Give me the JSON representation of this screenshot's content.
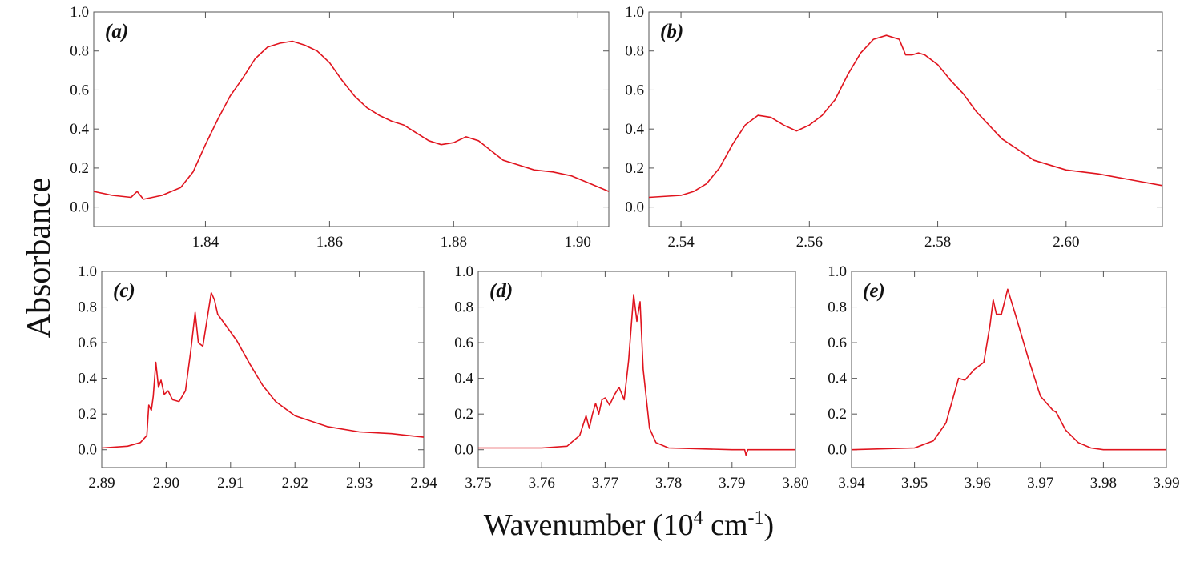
{
  "figure": {
    "ylabel": "Absorbance",
    "xlabel_main": "Wavenumber (10",
    "xlabel_exp": "4",
    "xlabel_unit": " cm",
    "xlabel_unit_exp": "-1",
    "xlabel_close": ")",
    "line_color": "#e0141e"
  },
  "chart_data": [
    {
      "type": "line",
      "panel": "a",
      "label": "(a)",
      "xlim": [
        1.822,
        1.905
      ],
      "ylim": [
        -0.1,
        1.0
      ],
      "xticks": [
        1.84,
        1.86,
        1.88,
        1.9
      ],
      "xtick_labels": [
        "1.84",
        "1.86",
        "1.88",
        "1.90"
      ],
      "yticks": [
        0.0,
        0.2,
        0.4,
        0.6,
        0.8,
        1.0
      ],
      "ytick_labels": [
        "0.0",
        "0.2",
        "0.4",
        "0.6",
        "0.8",
        "1.0"
      ],
      "series": [
        {
          "name": "absorbance",
          "x": [
            1.822,
            1.825,
            1.828,
            1.829,
            1.83,
            1.833,
            1.836,
            1.838,
            1.84,
            1.842,
            1.844,
            1.846,
            1.848,
            1.85,
            1.852,
            1.854,
            1.856,
            1.858,
            1.86,
            1.862,
            1.864,
            1.866,
            1.868,
            1.87,
            1.872,
            1.874,
            1.876,
            1.878,
            1.88,
            1.882,
            1.884,
            1.886,
            1.888,
            1.89,
            1.893,
            1.896,
            1.899,
            1.902,
            1.905
          ],
          "y": [
            0.08,
            0.06,
            0.05,
            0.08,
            0.04,
            0.06,
            0.1,
            0.18,
            0.32,
            0.45,
            0.57,
            0.66,
            0.76,
            0.82,
            0.84,
            0.85,
            0.83,
            0.8,
            0.74,
            0.65,
            0.57,
            0.51,
            0.47,
            0.44,
            0.42,
            0.38,
            0.34,
            0.32,
            0.33,
            0.36,
            0.34,
            0.29,
            0.24,
            0.22,
            0.19,
            0.18,
            0.16,
            0.12,
            0.08
          ]
        }
      ]
    },
    {
      "type": "line",
      "panel": "b",
      "label": "(b)",
      "xlim": [
        2.535,
        2.615
      ],
      "ylim": [
        -0.1,
        1.0
      ],
      "xticks": [
        2.54,
        2.56,
        2.58,
        2.6
      ],
      "xtick_labels": [
        "2.54",
        "2.56",
        "2.58",
        "2.60"
      ],
      "yticks": [
        0.0,
        0.2,
        0.4,
        0.6,
        0.8,
        1.0
      ],
      "ytick_labels": [
        "0.0",
        "0.2",
        "0.4",
        "0.6",
        "0.8",
        "1.0"
      ],
      "series": [
        {
          "name": "absorbance",
          "x": [
            2.535,
            2.54,
            2.542,
            2.544,
            2.546,
            2.548,
            2.55,
            2.552,
            2.554,
            2.556,
            2.558,
            2.56,
            2.562,
            2.564,
            2.566,
            2.568,
            2.57,
            2.572,
            2.574,
            2.575,
            2.576,
            2.577,
            2.578,
            2.58,
            2.582,
            2.584,
            2.586,
            2.59,
            2.595,
            2.6,
            2.605,
            2.61,
            2.615
          ],
          "y": [
            0.05,
            0.06,
            0.08,
            0.12,
            0.2,
            0.32,
            0.42,
            0.47,
            0.46,
            0.42,
            0.39,
            0.42,
            0.47,
            0.55,
            0.68,
            0.79,
            0.86,
            0.88,
            0.86,
            0.78,
            0.78,
            0.79,
            0.78,
            0.73,
            0.65,
            0.58,
            0.49,
            0.35,
            0.24,
            0.19,
            0.17,
            0.14,
            0.11
          ]
        }
      ]
    },
    {
      "type": "line",
      "panel": "c",
      "label": "(c)",
      "xlim": [
        2.89,
        2.94
      ],
      "ylim": [
        -0.1,
        1.0
      ],
      "xticks": [
        2.89,
        2.9,
        2.91,
        2.92,
        2.93,
        2.94
      ],
      "xtick_labels": [
        "2.89",
        "2.90",
        "2.91",
        "2.92",
        "2.93",
        "2.94"
      ],
      "yticks": [
        0.0,
        0.2,
        0.4,
        0.6,
        0.8,
        1.0
      ],
      "ytick_labels": [
        "0.0",
        "0.2",
        "0.4",
        "0.6",
        "0.8",
        "1.0"
      ],
      "series": [
        {
          "name": "absorbance",
          "x": [
            2.89,
            2.894,
            2.896,
            2.897,
            2.8973,
            2.8977,
            2.898,
            2.8984,
            2.8988,
            2.8992,
            2.8997,
            2.9003,
            2.901,
            2.902,
            2.903,
            2.9038,
            2.9045,
            2.905,
            2.9057,
            2.9063,
            2.907,
            2.9075,
            2.908,
            2.909,
            2.911,
            2.913,
            2.915,
            2.917,
            2.92,
            2.925,
            2.93,
            2.935,
            2.94
          ],
          "y": [
            0.01,
            0.02,
            0.04,
            0.08,
            0.25,
            0.22,
            0.3,
            0.49,
            0.35,
            0.39,
            0.31,
            0.33,
            0.28,
            0.27,
            0.33,
            0.55,
            0.77,
            0.6,
            0.58,
            0.72,
            0.88,
            0.84,
            0.76,
            0.71,
            0.61,
            0.48,
            0.36,
            0.27,
            0.19,
            0.13,
            0.1,
            0.09,
            0.07
          ]
        }
      ]
    },
    {
      "type": "line",
      "panel": "d",
      "label": "(d)",
      "xlim": [
        3.75,
        3.8
      ],
      "ylim": [
        -0.1,
        1.0
      ],
      "xticks": [
        3.75,
        3.76,
        3.77,
        3.78,
        3.79,
        3.8
      ],
      "xtick_labels": [
        "3.75",
        "3.76",
        "3.77",
        "3.78",
        "3.79",
        "3.80"
      ],
      "yticks": [
        0.0,
        0.2,
        0.4,
        0.6,
        0.8,
        1.0
      ],
      "ytick_labels": [
        "0.0",
        "0.2",
        "0.4",
        "0.6",
        "0.8",
        "1.0"
      ],
      "series": [
        {
          "name": "absorbance",
          "x": [
            3.75,
            3.76,
            3.764,
            3.766,
            3.767,
            3.7675,
            3.768,
            3.7685,
            3.769,
            3.7695,
            3.77,
            3.7707,
            3.7715,
            3.7722,
            3.773,
            3.7737,
            3.7745,
            3.775,
            3.7755,
            3.776,
            3.777,
            3.778,
            3.78,
            3.79,
            3.792,
            3.7922,
            3.7925,
            3.8
          ],
          "y": [
            0.01,
            0.01,
            0.02,
            0.08,
            0.19,
            0.12,
            0.2,
            0.26,
            0.2,
            0.28,
            0.29,
            0.25,
            0.31,
            0.35,
            0.28,
            0.5,
            0.87,
            0.72,
            0.83,
            0.45,
            0.12,
            0.04,
            0.01,
            0.0,
            0.0,
            -0.03,
            0.0,
            0.0
          ]
        }
      ]
    },
    {
      "type": "line",
      "panel": "e",
      "label": "(e)",
      "xlim": [
        3.94,
        3.99
      ],
      "ylim": [
        -0.1,
        1.0
      ],
      "xticks": [
        3.94,
        3.95,
        3.96,
        3.97,
        3.98,
        3.99
      ],
      "xtick_labels": [
        "3.94",
        "3.95",
        "3.96",
        "3.97",
        "3.98",
        "3.99"
      ],
      "yticks": [
        0.0,
        0.2,
        0.4,
        0.6,
        0.8,
        1.0
      ],
      "ytick_labels": [
        "0.0",
        "0.2",
        "0.4",
        "0.6",
        "0.8",
        "1.0"
      ],
      "series": [
        {
          "name": "absorbance",
          "x": [
            3.94,
            3.95,
            3.953,
            3.955,
            3.957,
            3.958,
            3.9595,
            3.961,
            3.962,
            3.9625,
            3.963,
            3.9638,
            3.9648,
            3.966,
            3.968,
            3.97,
            3.972,
            3.9725,
            3.974,
            3.976,
            3.978,
            3.98,
            3.99
          ],
          "y": [
            0.0,
            0.01,
            0.05,
            0.15,
            0.4,
            0.39,
            0.45,
            0.49,
            0.7,
            0.84,
            0.76,
            0.76,
            0.9,
            0.76,
            0.52,
            0.3,
            0.22,
            0.21,
            0.11,
            0.04,
            0.01,
            0.0,
            0.0
          ]
        }
      ]
    }
  ]
}
